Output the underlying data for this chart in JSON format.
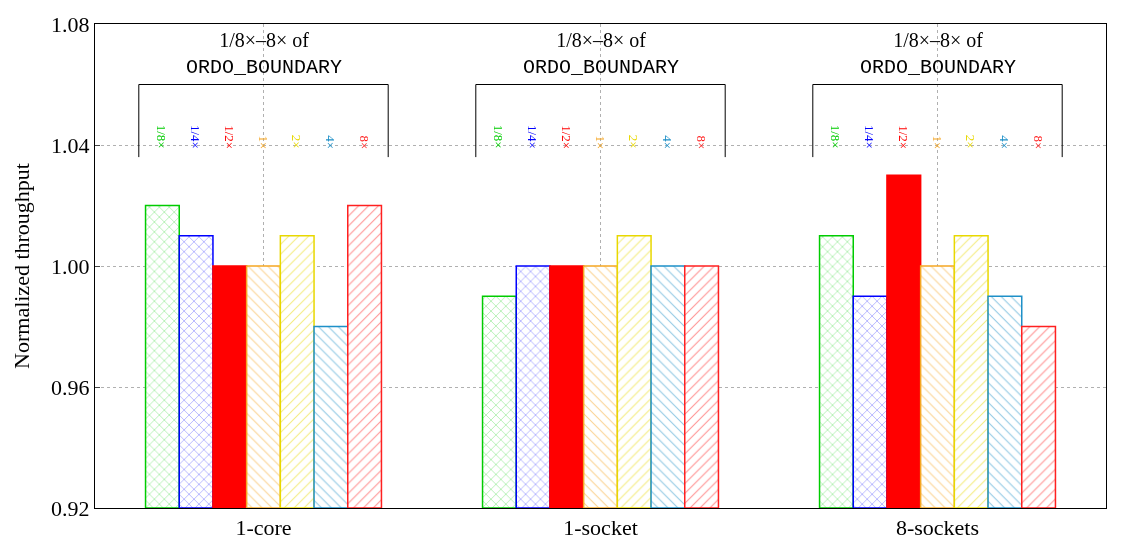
{
  "chart_data": {
    "type": "bar",
    "ylabel": "Normalized throughput",
    "categories": [
      "1-core",
      "1-socket",
      "8-sockets"
    ],
    "series": [
      {
        "name": "1/8×",
        "color": "#00cc00",
        "values": [
          1.02,
          0.99,
          1.01
        ]
      },
      {
        "name": "1/4×",
        "color": "#0000ff",
        "values": [
          1.01,
          1.0,
          0.99
        ]
      },
      {
        "name": "1/2×",
        "color": "#ff0000",
        "values": [
          1.0,
          1.0,
          1.03
        ]
      },
      {
        "name": "1×",
        "color": "#f5a623",
        "values": [
          1.0,
          1.0,
          1.0
        ]
      },
      {
        "name": "2×",
        "color": "#e8d800",
        "values": [
          1.01,
          1.01,
          1.01
        ]
      },
      {
        "name": "4×",
        "color": "#1e90c8",
        "values": [
          0.98,
          1.0,
          0.99
        ]
      },
      {
        "name": "8×",
        "color": "#ff2020",
        "values": [
          1.02,
          1.0,
          0.98
        ]
      }
    ],
    "annotations": [
      "1/8×–8× of\nORDO_BOUNDARY",
      "1/8×–8× of\nORDO_BOUNDARY",
      "1/8×–8× of\nORDO_BOUNDARY"
    ],
    "ylim": [
      0.92,
      1.08
    ],
    "yticks": [
      0.92,
      0.96,
      {
        "value": 1.0,
        "label": "1.00"
      },
      1.04,
      1.08
    ],
    "grid": true,
    "legend": false
  }
}
